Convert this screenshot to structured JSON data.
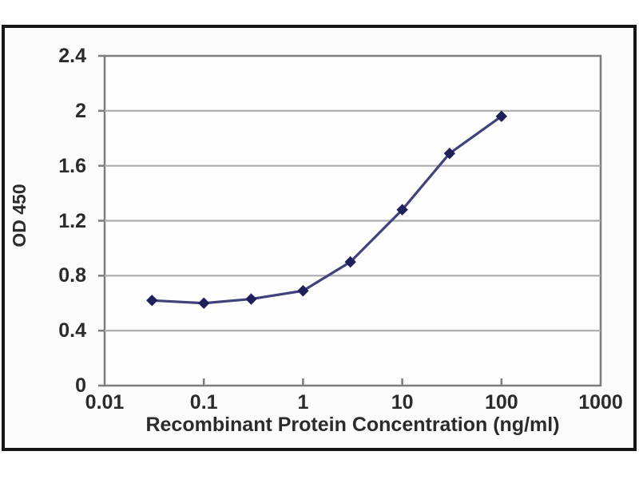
{
  "figure": {
    "background": "#ffffff",
    "photo_background": "#fcfcfc",
    "frame_border_color": "#161616"
  },
  "chart_data": {
    "type": "line",
    "title": "",
    "xlabel": "Recombinant Protein Concentration (ng/ml)",
    "ylabel": "OD 450",
    "x_scale": "log",
    "xlim": [
      0.01,
      1000
    ],
    "ylim": [
      0,
      2.4
    ],
    "x": [
      0.03,
      0.1,
      0.3,
      1,
      3,
      10,
      30,
      100
    ],
    "y": [
      0.62,
      0.6,
      0.63,
      0.69,
      0.9,
      1.28,
      1.69,
      1.96
    ],
    "x_tick_values": [
      0.01,
      0.1,
      1,
      10,
      100,
      1000
    ],
    "x_tick_labels": [
      "0.01",
      "0.1",
      "1",
      "10",
      "100",
      "1000"
    ],
    "y_tick_values": [
      0,
      0.4,
      0.8,
      1.2,
      1.6,
      2,
      2.4
    ],
    "y_tick_labels": [
      "0",
      "0.4",
      "0.8",
      "1.2",
      "1.6",
      "2",
      "2.4"
    ],
    "grid": "horizontal",
    "legend": null,
    "marker_shape": "diamond",
    "colors": {
      "line": "#41417c",
      "marker": "#1f1f5a",
      "grid": "#ababab",
      "frame": "#7d7d7d",
      "text": "#2b2b2b",
      "plot_background": "#fdfdfd"
    }
  }
}
